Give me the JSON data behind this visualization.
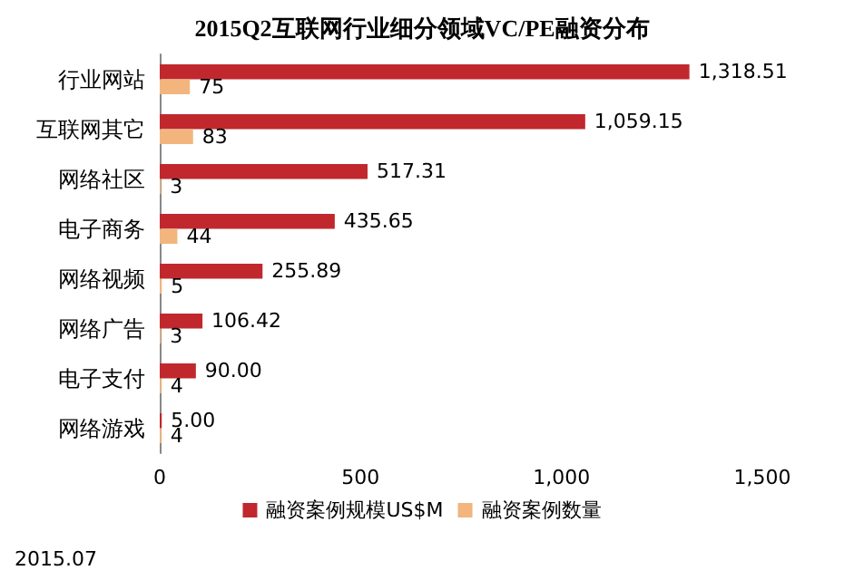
{
  "chart_data": {
    "type": "bar",
    "orientation": "horizontal",
    "title": "2015Q2互联网行业细分领域VC/PE融资分布",
    "categories": [
      "行业网站",
      "互联网其它",
      "网络社区",
      "电子商务",
      "网络视频",
      "网络广告",
      "电子支付",
      "网络游戏"
    ],
    "series": [
      {
        "name": "融资案例规模US$M",
        "color": "#c0282e",
        "values": [
          1318.51,
          1059.15,
          517.31,
          435.65,
          255.89,
          106.42,
          90.0,
          5.0
        ],
        "value_labels": [
          "1,318.51",
          "1,059.15",
          "517.31",
          "435.65",
          "255.89",
          "106.42",
          "90.00",
          "5.00"
        ]
      },
      {
        "name": "融资案例数量",
        "color": "#f2b57d",
        "values": [
          75,
          83,
          3,
          44,
          5,
          3,
          4,
          4
        ],
        "value_labels": [
          "75",
          "83",
          "3",
          "44",
          "5",
          "3",
          "4",
          "4"
        ]
      }
    ],
    "xlim": [
      0,
      1500
    ],
    "xticks": [
      0,
      500,
      {
        "value": 1000,
        "label": "1,000"
      },
      {
        "value": 1500,
        "label": "1,500"
      }
    ],
    "grid": false,
    "legend": "bottom",
    "annotations": [
      "2015.07"
    ]
  }
}
